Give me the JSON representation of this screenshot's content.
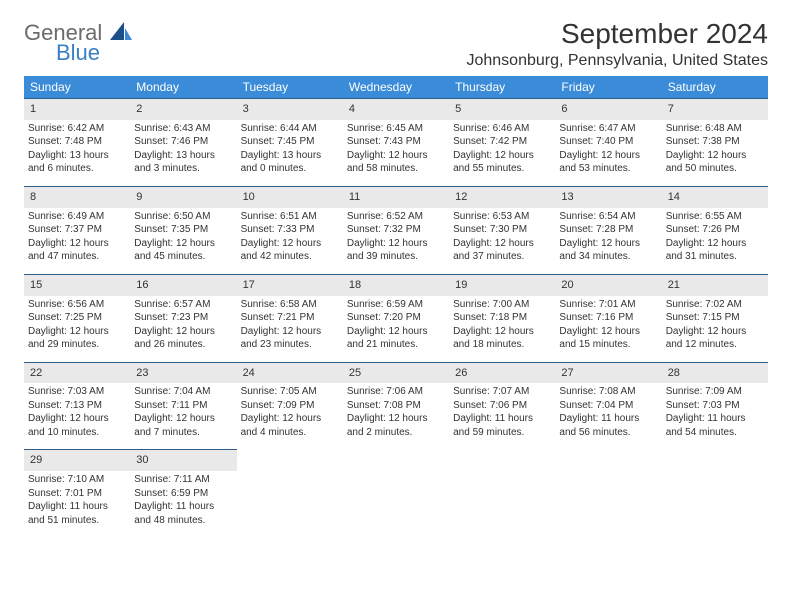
{
  "brand": {
    "line1": "General",
    "line2": "Blue"
  },
  "title": "September 2024",
  "location": "Johnsonburg, Pennsylvania, United States",
  "colors": {
    "header_bg": "#3a8bd8",
    "header_text": "#ffffff",
    "daynum_bg": "#e9e9e9",
    "rule": "#2b5e8a",
    "logo_gray": "#6b6b6b",
    "logo_blue": "#3a7fc4",
    "text": "#333333",
    "page_bg": "#ffffff"
  },
  "typography": {
    "month_title_pt": 28,
    "location_pt": 16,
    "weekday_pt": 12,
    "daynum_pt": 11,
    "body_pt": 10
  },
  "weekdays": [
    "Sunday",
    "Monday",
    "Tuesday",
    "Wednesday",
    "Thursday",
    "Friday",
    "Saturday"
  ],
  "days": [
    {
      "n": 1,
      "sunrise": "6:42 AM",
      "sunset": "7:48 PM",
      "daylight": "13 hours and 6 minutes."
    },
    {
      "n": 2,
      "sunrise": "6:43 AM",
      "sunset": "7:46 PM",
      "daylight": "13 hours and 3 minutes."
    },
    {
      "n": 3,
      "sunrise": "6:44 AM",
      "sunset": "7:45 PM",
      "daylight": "13 hours and 0 minutes."
    },
    {
      "n": 4,
      "sunrise": "6:45 AM",
      "sunset": "7:43 PM",
      "daylight": "12 hours and 58 minutes."
    },
    {
      "n": 5,
      "sunrise": "6:46 AM",
      "sunset": "7:42 PM",
      "daylight": "12 hours and 55 minutes."
    },
    {
      "n": 6,
      "sunrise": "6:47 AM",
      "sunset": "7:40 PM",
      "daylight": "12 hours and 53 minutes."
    },
    {
      "n": 7,
      "sunrise": "6:48 AM",
      "sunset": "7:38 PM",
      "daylight": "12 hours and 50 minutes."
    },
    {
      "n": 8,
      "sunrise": "6:49 AM",
      "sunset": "7:37 PM",
      "daylight": "12 hours and 47 minutes."
    },
    {
      "n": 9,
      "sunrise": "6:50 AM",
      "sunset": "7:35 PM",
      "daylight": "12 hours and 45 minutes."
    },
    {
      "n": 10,
      "sunrise": "6:51 AM",
      "sunset": "7:33 PM",
      "daylight": "12 hours and 42 minutes."
    },
    {
      "n": 11,
      "sunrise": "6:52 AM",
      "sunset": "7:32 PM",
      "daylight": "12 hours and 39 minutes."
    },
    {
      "n": 12,
      "sunrise": "6:53 AM",
      "sunset": "7:30 PM",
      "daylight": "12 hours and 37 minutes."
    },
    {
      "n": 13,
      "sunrise": "6:54 AM",
      "sunset": "7:28 PM",
      "daylight": "12 hours and 34 minutes."
    },
    {
      "n": 14,
      "sunrise": "6:55 AM",
      "sunset": "7:26 PM",
      "daylight": "12 hours and 31 minutes."
    },
    {
      "n": 15,
      "sunrise": "6:56 AM",
      "sunset": "7:25 PM",
      "daylight": "12 hours and 29 minutes."
    },
    {
      "n": 16,
      "sunrise": "6:57 AM",
      "sunset": "7:23 PM",
      "daylight": "12 hours and 26 minutes."
    },
    {
      "n": 17,
      "sunrise": "6:58 AM",
      "sunset": "7:21 PM",
      "daylight": "12 hours and 23 minutes."
    },
    {
      "n": 18,
      "sunrise": "6:59 AM",
      "sunset": "7:20 PM",
      "daylight": "12 hours and 21 minutes."
    },
    {
      "n": 19,
      "sunrise": "7:00 AM",
      "sunset": "7:18 PM",
      "daylight": "12 hours and 18 minutes."
    },
    {
      "n": 20,
      "sunrise": "7:01 AM",
      "sunset": "7:16 PM",
      "daylight": "12 hours and 15 minutes."
    },
    {
      "n": 21,
      "sunrise": "7:02 AM",
      "sunset": "7:15 PM",
      "daylight": "12 hours and 12 minutes."
    },
    {
      "n": 22,
      "sunrise": "7:03 AM",
      "sunset": "7:13 PM",
      "daylight": "12 hours and 10 minutes."
    },
    {
      "n": 23,
      "sunrise": "7:04 AM",
      "sunset": "7:11 PM",
      "daylight": "12 hours and 7 minutes."
    },
    {
      "n": 24,
      "sunrise": "7:05 AM",
      "sunset": "7:09 PM",
      "daylight": "12 hours and 4 minutes."
    },
    {
      "n": 25,
      "sunrise": "7:06 AM",
      "sunset": "7:08 PM",
      "daylight": "12 hours and 2 minutes."
    },
    {
      "n": 26,
      "sunrise": "7:07 AM",
      "sunset": "7:06 PM",
      "daylight": "11 hours and 59 minutes."
    },
    {
      "n": 27,
      "sunrise": "7:08 AM",
      "sunset": "7:04 PM",
      "daylight": "11 hours and 56 minutes."
    },
    {
      "n": 28,
      "sunrise": "7:09 AM",
      "sunset": "7:03 PM",
      "daylight": "11 hours and 54 minutes."
    },
    {
      "n": 29,
      "sunrise": "7:10 AM",
      "sunset": "7:01 PM",
      "daylight": "11 hours and 51 minutes."
    },
    {
      "n": 30,
      "sunrise": "7:11 AM",
      "sunset": "6:59 PM",
      "daylight": "11 hours and 48 minutes."
    }
  ],
  "labels": {
    "sunrise_prefix": "Sunrise: ",
    "sunset_prefix": "Sunset: ",
    "daylight_prefix": "Daylight: "
  },
  "layout": {
    "columns": 7,
    "start_weekday_index": 0,
    "weeks": 5
  }
}
